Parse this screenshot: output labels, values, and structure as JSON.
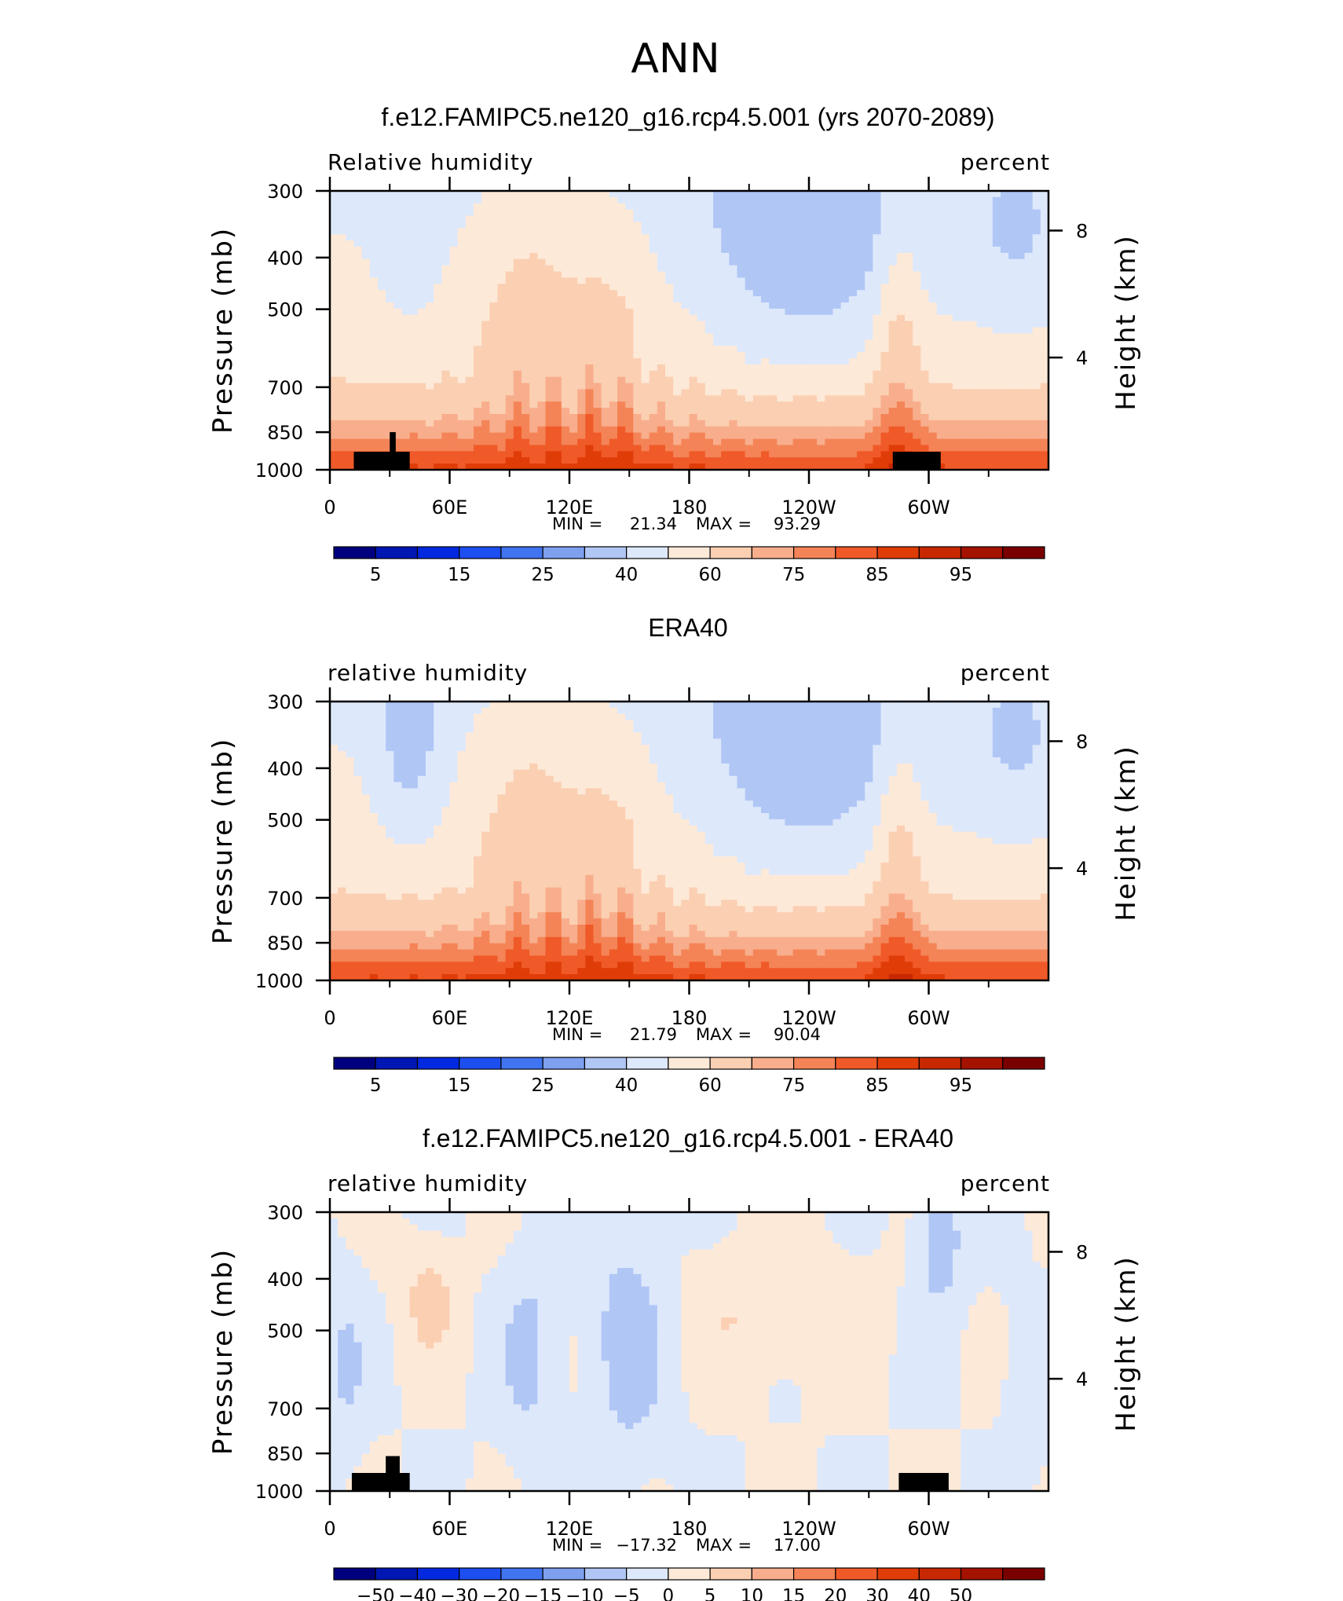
{
  "figure": {
    "title": "ANN"
  },
  "colors": {
    "rh_levels": [
      "#00007f",
      "#0017b4",
      "#0229e0",
      "#1d4ef0",
      "#4174f0",
      "#7ea0ef",
      "#b0c6f5",
      "#dde8fb",
      "#fde9d8",
      "#fbcfb2",
      "#f8ae8c",
      "#f48457",
      "#f05a28",
      "#e03c08",
      "#c82800",
      "#a41200",
      "#7a0000"
    ],
    "diff_levels": [
      "#00007f",
      "#0017b4",
      "#0229e0",
      "#1d4ef0",
      "#4174f0",
      "#7ea0ef",
      "#b0c6f5",
      "#dde8fb",
      "#fde9d8",
      "#fbcfb2",
      "#f8ae8c",
      "#f48457",
      "#f05a28",
      "#e03c08",
      "#c82800",
      "#a41200",
      "#7a0000"
    ],
    "topography": "#000000"
  },
  "chart_data": [
    {
      "type": "heatmap",
      "title": "f.e12.FAMIPC5.ne120_g16.rcp4.5.001 (yrs 2070-2089)",
      "left_string": "Relative humidity",
      "right_string": "percent",
      "xlabel": "",
      "ylabel": "Pressure (mb)",
      "y2label": "Height (km)",
      "x_ticks": [
        "0",
        "60E",
        "120E",
        "180",
        "120W",
        "60W"
      ],
      "x_range": [
        0,
        360
      ],
      "y_ticks": [
        "300",
        "400",
        "500",
        "700",
        "850",
        "1000"
      ],
      "y_range": [
        300,
        1000
      ],
      "y_scale": "log",
      "y2_ticks": [
        "8",
        "4"
      ],
      "stats": {
        "min_label": "MIN =",
        "min": "21.34",
        "max_label": "MAX =",
        "max": "93.29"
      },
      "colorbar_labels": [
        "5",
        "15",
        "25",
        "40",
        "60",
        "75",
        "85",
        "95"
      ],
      "topography": [
        [
          12,
          40,
          925
        ],
        [
          30,
          33,
          850
        ],
        [
          282,
          306,
          925
        ]
      ]
    },
    {
      "type": "heatmap",
      "title": "ERA40",
      "left_string": "relative humidity",
      "right_string": "percent",
      "xlabel": "",
      "ylabel": "Pressure (mb)",
      "y2label": "Height (km)",
      "x_ticks": [
        "0",
        "60E",
        "120E",
        "180",
        "120W",
        "60W"
      ],
      "x_range": [
        0,
        360
      ],
      "y_ticks": [
        "300",
        "400",
        "500",
        "700",
        "850",
        "1000"
      ],
      "y_range": [
        300,
        1000
      ],
      "y_scale": "log",
      "y2_ticks": [
        "8",
        "4"
      ],
      "stats": {
        "min_label": "MIN =",
        "min": "21.79",
        "max_label": "MAX =",
        "max": "90.04"
      },
      "colorbar_labels": [
        "5",
        "15",
        "25",
        "40",
        "60",
        "75",
        "85",
        "95"
      ],
      "topography": []
    },
    {
      "type": "heatmap",
      "title": "f.e12.FAMIPC5.ne120_g16.rcp4.5.001 - ERA40",
      "left_string": "relative humidity",
      "right_string": "percent",
      "xlabel": "",
      "ylabel": "Pressure (mb)",
      "y2label": "Height (km)",
      "x_ticks": [
        "0",
        "60E",
        "120E",
        "180",
        "120W",
        "60W"
      ],
      "x_range": [
        0,
        360
      ],
      "y_ticks": [
        "300",
        "400",
        "500",
        "700",
        "850",
        "1000"
      ],
      "y_range": [
        300,
        1000
      ],
      "y_scale": "log",
      "y2_ticks": [
        "8",
        "4"
      ],
      "stats": {
        "min_label": "MIN =",
        "min": "−17.32",
        "max_label": "MAX =",
        "max": "17.00"
      },
      "colorbar_labels": [
        "−50",
        "−40",
        "−30",
        "−20",
        "−15",
        "−10",
        "−5",
        "0",
        "5",
        "10",
        "15",
        "20",
        "30",
        "40",
        "50"
      ],
      "topography": [
        [
          11,
          40,
          925
        ],
        [
          28,
          35,
          860
        ],
        [
          285,
          310,
          925
        ]
      ]
    }
  ]
}
